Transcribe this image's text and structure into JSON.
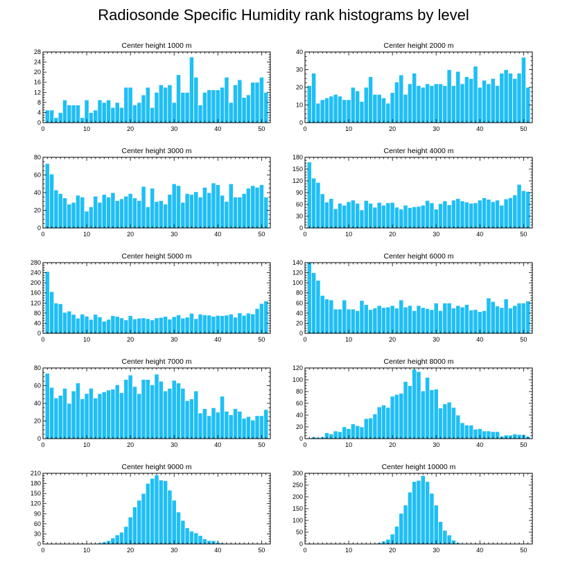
{
  "page": {
    "title": "Radiosonde Specific Humidity rank histograms by level"
  },
  "colors": {
    "bar_fill": "#1FBFF5",
    "bar_stroke": "#ffffff",
    "axis": "#000000"
  },
  "chart_data": [
    {
      "type": "bar",
      "title": "Center height 1000 m",
      "x": [
        1,
        2,
        3,
        4,
        5,
        6,
        7,
        8,
        9,
        10,
        11,
        12,
        13,
        14,
        15,
        16,
        17,
        18,
        19,
        20,
        21,
        22,
        23,
        24,
        25,
        26,
        27,
        28,
        29,
        30,
        31,
        32,
        33,
        34,
        35,
        36,
        37,
        38,
        39,
        40,
        41,
        42,
        43,
        44,
        45,
        46,
        47,
        48,
        49,
        50,
        51
      ],
      "values": [
        5,
        5,
        2,
        4,
        9,
        7,
        7,
        7,
        2,
        9,
        4,
        5,
        9,
        8,
        9,
        6,
        8,
        6,
        14,
        14,
        7,
        8,
        11,
        14,
        6,
        12,
        15,
        14,
        15,
        8,
        19,
        12,
        12,
        26,
        18,
        7,
        12,
        13,
        13,
        13,
        14,
        18,
        8,
        15,
        17,
        10,
        11,
        16,
        16,
        18,
        12
      ],
      "xlim": [
        0,
        52
      ],
      "ylim": [
        0,
        28
      ],
      "xticks": [
        0,
        10,
        20,
        30,
        40,
        50
      ],
      "yticks": [
        0,
        4,
        8,
        12,
        16,
        20,
        24,
        28
      ],
      "xlabel": "",
      "ylabel": ""
    },
    {
      "type": "bar",
      "title": "Center height 2000 m",
      "x": [
        1,
        2,
        3,
        4,
        5,
        6,
        7,
        8,
        9,
        10,
        11,
        12,
        13,
        14,
        15,
        16,
        17,
        18,
        19,
        20,
        21,
        22,
        23,
        24,
        25,
        26,
        27,
        28,
        29,
        30,
        31,
        32,
        33,
        34,
        35,
        36,
        37,
        38,
        39,
        40,
        41,
        42,
        43,
        44,
        45,
        46,
        47,
        48,
        49,
        50,
        51
      ],
      "values": [
        21,
        28,
        11,
        13,
        14,
        15,
        16,
        15,
        13,
        13,
        20,
        18,
        12,
        20,
        26,
        16,
        16,
        14,
        11,
        17,
        23,
        27,
        16,
        22,
        28,
        21,
        20,
        22,
        21,
        22,
        22,
        21,
        30,
        21,
        29,
        22,
        26,
        25,
        32,
        20,
        24,
        22,
        25,
        21,
        28,
        30,
        28,
        25,
        28,
        37,
        20
      ],
      "xlim": [
        0,
        52
      ],
      "ylim": [
        0,
        40
      ],
      "xticks": [
        0,
        10,
        20,
        30,
        40,
        50
      ],
      "yticks": [
        0,
        10,
        20,
        30,
        40
      ],
      "xlabel": "",
      "ylabel": ""
    },
    {
      "type": "bar",
      "title": "Center height 3000 m",
      "x": [
        1,
        2,
        3,
        4,
        5,
        6,
        7,
        8,
        9,
        10,
        11,
        12,
        13,
        14,
        15,
        16,
        17,
        18,
        19,
        20,
        21,
        22,
        23,
        24,
        25,
        26,
        27,
        28,
        29,
        30,
        31,
        32,
        33,
        34,
        35,
        36,
        37,
        38,
        39,
        40,
        41,
        42,
        43,
        44,
        45,
        46,
        47,
        48,
        49,
        50,
        51
      ],
      "values": [
        73,
        61,
        43,
        39,
        34,
        27,
        29,
        37,
        35,
        19,
        24,
        36,
        29,
        38,
        35,
        40,
        31,
        33,
        36,
        39,
        34,
        31,
        47,
        24,
        45,
        30,
        31,
        27,
        38,
        50,
        48,
        29,
        39,
        38,
        41,
        35,
        46,
        40,
        51,
        49,
        37,
        30,
        50,
        35,
        35,
        39,
        45,
        48,
        46,
        49,
        35
      ],
      "xlim": [
        0,
        52
      ],
      "ylim": [
        0,
        80
      ],
      "xticks": [
        0,
        10,
        20,
        30,
        40,
        50
      ],
      "yticks": [
        0,
        20,
        40,
        60,
        80
      ],
      "xlabel": "",
      "ylabel": ""
    },
    {
      "type": "bar",
      "title": "Center height 4000 m",
      "x": [
        1,
        2,
        3,
        4,
        5,
        6,
        7,
        8,
        9,
        10,
        11,
        12,
        13,
        14,
        15,
        16,
        17,
        18,
        19,
        20,
        21,
        22,
        23,
        24,
        25,
        26,
        27,
        28,
        29,
        30,
        31,
        32,
        33,
        34,
        35,
        36,
        37,
        38,
        39,
        40,
        41,
        42,
        43,
        44,
        45,
        46,
        47,
        48,
        49,
        50,
        51
      ],
      "values": [
        168,
        127,
        116,
        87,
        66,
        75,
        49,
        63,
        58,
        67,
        71,
        63,
        46,
        70,
        63,
        53,
        65,
        58,
        64,
        65,
        53,
        48,
        58,
        52,
        54,
        55,
        58,
        70,
        64,
        48,
        62,
        69,
        59,
        71,
        75,
        69,
        66,
        63,
        64,
        71,
        77,
        73,
        67,
        71,
        58,
        74,
        77,
        84,
        111,
        95,
        93
      ],
      "xlim": [
        0,
        52
      ],
      "ylim": [
        0,
        180
      ],
      "xticks": [
        0,
        10,
        20,
        30,
        40,
        50
      ],
      "yticks": [
        0,
        30,
        60,
        90,
        120,
        150,
        180
      ],
      "xlabel": "",
      "ylabel": ""
    },
    {
      "type": "bar",
      "title": "Center height 5000 m",
      "x": [
        1,
        2,
        3,
        4,
        5,
        6,
        7,
        8,
        9,
        10,
        11,
        12,
        13,
        14,
        15,
        16,
        17,
        18,
        19,
        20,
        21,
        22,
        23,
        24,
        25,
        26,
        27,
        28,
        29,
        30,
        31,
        32,
        33,
        34,
        35,
        36,
        37,
        38,
        39,
        40,
        41,
        42,
        43,
        44,
        45,
        46,
        47,
        48,
        49,
        50,
        51
      ],
      "values": [
        245,
        165,
        120,
        117,
        83,
        88,
        75,
        60,
        76,
        68,
        55,
        75,
        65,
        48,
        55,
        70,
        67,
        61,
        53,
        70,
        57,
        60,
        61,
        58,
        53,
        61,
        63,
        67,
        56,
        66,
        73,
        60,
        64,
        79,
        58,
        76,
        73,
        72,
        67,
        71,
        70,
        72,
        76,
        64,
        81,
        71,
        80,
        77,
        98,
        118,
        128
      ],
      "xlim": [
        0,
        52
      ],
      "ylim": [
        0,
        280
      ],
      "xticks": [
        0,
        10,
        20,
        30,
        40,
        50
      ],
      "yticks": [
        0,
        40,
        80,
        120,
        160,
        200,
        240,
        280
      ],
      "xlabel": "",
      "ylabel": ""
    },
    {
      "type": "bar",
      "title": "Center height 6000 m",
      "x": [
        1,
        2,
        3,
        4,
        5,
        6,
        7,
        8,
        9,
        10,
        11,
        12,
        13,
        14,
        15,
        16,
        17,
        18,
        19,
        20,
        21,
        22,
        23,
        24,
        25,
        26,
        27,
        28,
        29,
        30,
        31,
        32,
        33,
        34,
        35,
        36,
        37,
        38,
        39,
        40,
        41,
        42,
        43,
        44,
        45,
        46,
        47,
        48,
        49,
        50,
        51
      ],
      "values": [
        140,
        120,
        105,
        75,
        68,
        66,
        48,
        48,
        66,
        48,
        48,
        45,
        65,
        57,
        47,
        50,
        55,
        51,
        52,
        55,
        50,
        66,
        52,
        55,
        45,
        55,
        51,
        49,
        47,
        60,
        45,
        60,
        60,
        50,
        55,
        52,
        57,
        46,
        47,
        43,
        45,
        70,
        63,
        54,
        51,
        68,
        50,
        55,
        60,
        60,
        64
      ],
      "xlim": [
        0,
        52
      ],
      "ylim": [
        0,
        140
      ],
      "xticks": [
        0,
        10,
        20,
        30,
        40,
        50
      ],
      "yticks": [
        0,
        20,
        40,
        60,
        80,
        100,
        120,
        140
      ],
      "xlabel": "",
      "ylabel": ""
    },
    {
      "type": "bar",
      "title": "Center height 7000 m",
      "x": [
        1,
        2,
        3,
        4,
        5,
        6,
        7,
        8,
        9,
        10,
        11,
        12,
        13,
        14,
        15,
        16,
        17,
        18,
        19,
        20,
        21,
        22,
        23,
        24,
        25,
        26,
        27,
        28,
        29,
        30,
        31,
        32,
        33,
        34,
        35,
        36,
        37,
        38,
        39,
        40,
        41,
        42,
        43,
        44,
        45,
        46,
        47,
        48,
        49,
        50,
        51
      ],
      "values": [
        74,
        58,
        46,
        49,
        57,
        40,
        54,
        63,
        45,
        51,
        57,
        46,
        51,
        53,
        55,
        56,
        61,
        52,
        67,
        72,
        59,
        51,
        67,
        67,
        61,
        73,
        65,
        54,
        57,
        66,
        63,
        57,
        43,
        45,
        54,
        29,
        34,
        26,
        35,
        30,
        48,
        31,
        27,
        34,
        31,
        23,
        25,
        21,
        26,
        26,
        33
      ],
      "xlim": [
        0,
        52
      ],
      "ylim": [
        0,
        80
      ],
      "xticks": [
        0,
        10,
        20,
        30,
        40,
        50
      ],
      "yticks": [
        0,
        20,
        40,
        60,
        80
      ],
      "xlabel": "",
      "ylabel": ""
    },
    {
      "type": "bar",
      "title": "Center height 8000 m",
      "x": [
        1,
        2,
        3,
        4,
        5,
        6,
        7,
        8,
        9,
        10,
        11,
        12,
        13,
        14,
        15,
        16,
        17,
        18,
        19,
        20,
        21,
        22,
        23,
        24,
        25,
        26,
        27,
        28,
        29,
        30,
        31,
        32,
        33,
        34,
        35,
        36,
        37,
        38,
        39,
        40,
        41,
        42,
        43,
        44,
        45,
        46,
        47,
        48,
        49,
        50,
        51
      ],
      "values": [
        1,
        3,
        2,
        3,
        10,
        8,
        13,
        12,
        20,
        17,
        25,
        22,
        20,
        34,
        35,
        42,
        54,
        57,
        53,
        72,
        75,
        77,
        97,
        90,
        118,
        114,
        81,
        104,
        83,
        84,
        52,
        59,
        62,
        53,
        40,
        27,
        23,
        23,
        16,
        17,
        13,
        13,
        12,
        12,
        4,
        6,
        6,
        8,
        7,
        7,
        4
      ],
      "xlim": [
        0,
        52
      ],
      "ylim": [
        0,
        120
      ],
      "xticks": [
        0,
        10,
        20,
        30,
        40,
        50
      ],
      "yticks": [
        0,
        20,
        40,
        60,
        80,
        100,
        120
      ],
      "xlabel": "",
      "ylabel": ""
    },
    {
      "type": "bar",
      "title": "Center height 9000 m",
      "x": [
        1,
        2,
        3,
        4,
        5,
        6,
        7,
        8,
        9,
        10,
        11,
        12,
        13,
        14,
        15,
        16,
        17,
        18,
        19,
        20,
        21,
        22,
        23,
        24,
        25,
        26,
        27,
        28,
        29,
        30,
        31,
        32,
        33,
        34,
        35,
        36,
        37,
        38,
        39,
        40,
        41,
        42,
        43,
        44,
        45,
        46,
        47,
        48,
        49,
        50,
        51
      ],
      "values": [
        0,
        0,
        0,
        0,
        0,
        0,
        0,
        0,
        0,
        0,
        0,
        1,
        3,
        6,
        10,
        18,
        27,
        35,
        52,
        80,
        110,
        130,
        150,
        180,
        195,
        205,
        190,
        188,
        160,
        130,
        95,
        70,
        48,
        38,
        33,
        25,
        15,
        10,
        10,
        5,
        3,
        2,
        2,
        1,
        1,
        1,
        0,
        0,
        0,
        0,
        0
      ],
      "xlim": [
        0,
        52
      ],
      "ylim": [
        0,
        210
      ],
      "xticks": [
        0,
        10,
        20,
        30,
        40,
        50
      ],
      "yticks": [
        0,
        30,
        60,
        90,
        120,
        150,
        180,
        210
      ],
      "xlabel": "",
      "ylabel": ""
    },
    {
      "type": "bar",
      "title": "Center height 10000 m",
      "x": [
        1,
        2,
        3,
        4,
        5,
        6,
        7,
        8,
        9,
        10,
        11,
        12,
        13,
        14,
        15,
        16,
        17,
        18,
        19,
        20,
        21,
        22,
        23,
        24,
        25,
        26,
        27,
        28,
        29,
        30,
        31,
        32,
        33,
        34,
        35,
        36,
        37,
        38,
        39,
        40,
        41,
        42,
        43,
        44,
        45,
        46,
        47,
        48,
        49,
        50,
        51
      ],
      "values": [
        0,
        0,
        0,
        0,
        0,
        0,
        0,
        0,
        0,
        0,
        0,
        0,
        0,
        0,
        0,
        2,
        5,
        12,
        20,
        42,
        75,
        130,
        165,
        220,
        265,
        270,
        290,
        265,
        215,
        165,
        95,
        58,
        38,
        16,
        5,
        2,
        1,
        0,
        0,
        0,
        0,
        0,
        0,
        0,
        0,
        0,
        0,
        0,
        0,
        0,
        0
      ],
      "xlim": [
        0,
        52
      ],
      "ylim": [
        0,
        300
      ],
      "xticks": [
        0,
        10,
        20,
        30,
        40,
        50
      ],
      "yticks": [
        0,
        50,
        100,
        150,
        200,
        250,
        300
      ],
      "xlabel": "",
      "ylabel": ""
    }
  ]
}
